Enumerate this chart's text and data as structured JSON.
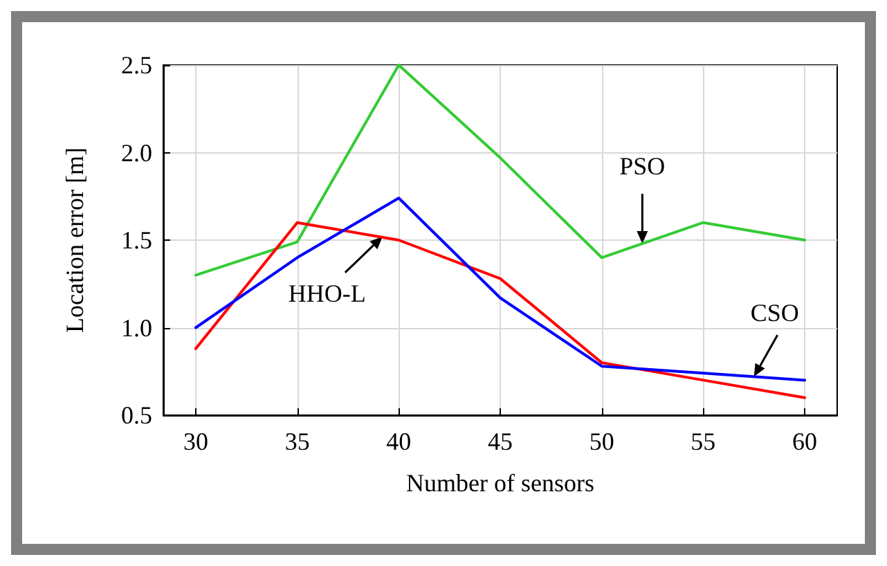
{
  "chart_data": {
    "type": "line",
    "xlabel": "Number of sensors",
    "ylabel": "Location error [m]",
    "x": [
      30,
      35,
      40,
      45,
      50,
      55,
      60
    ],
    "xlim": [
      28.4,
      61.6
    ],
    "xticks": [
      30,
      35,
      40,
      45,
      50,
      55,
      60
    ],
    "ylim": [
      0.5,
      2.5
    ],
    "yticks": [
      {
        "value": 0.5,
        "label": "0.5"
      },
      {
        "value": 1,
        "label": "1.0"
      },
      {
        "value": 1.5,
        "label": "1.5"
      },
      {
        "value": 2,
        "label": "2.0"
      },
      {
        "value": 2.5,
        "label": "2.5"
      }
    ],
    "grid": true,
    "marker": "none",
    "line_style": "solid",
    "series": [
      {
        "color": "#33cc33",
        "values": [
          1.3,
          1.49,
          2.5,
          1.97,
          1.4,
          1.6,
          1.5
        ]
      },
      {
        "color": "#ff0000",
        "values": [
          0.88,
          1.6,
          1.5,
          1.28,
          0.8,
          0.7,
          0.6
        ]
      },
      {
        "color": "#0000ff",
        "values": [
          1.0,
          1.4,
          1.74,
          1.17,
          0.78,
          0.74,
          0.7
        ]
      }
    ],
    "annotations": [
      {
        "text": "PSO",
        "x": 52,
        "y": 1.48
      },
      {
        "text": "HHO-L",
        "x": 39.2,
        "y": 1.52
      },
      {
        "text": "CSO",
        "x": 57.5,
        "y": 0.72
      }
    ]
  }
}
